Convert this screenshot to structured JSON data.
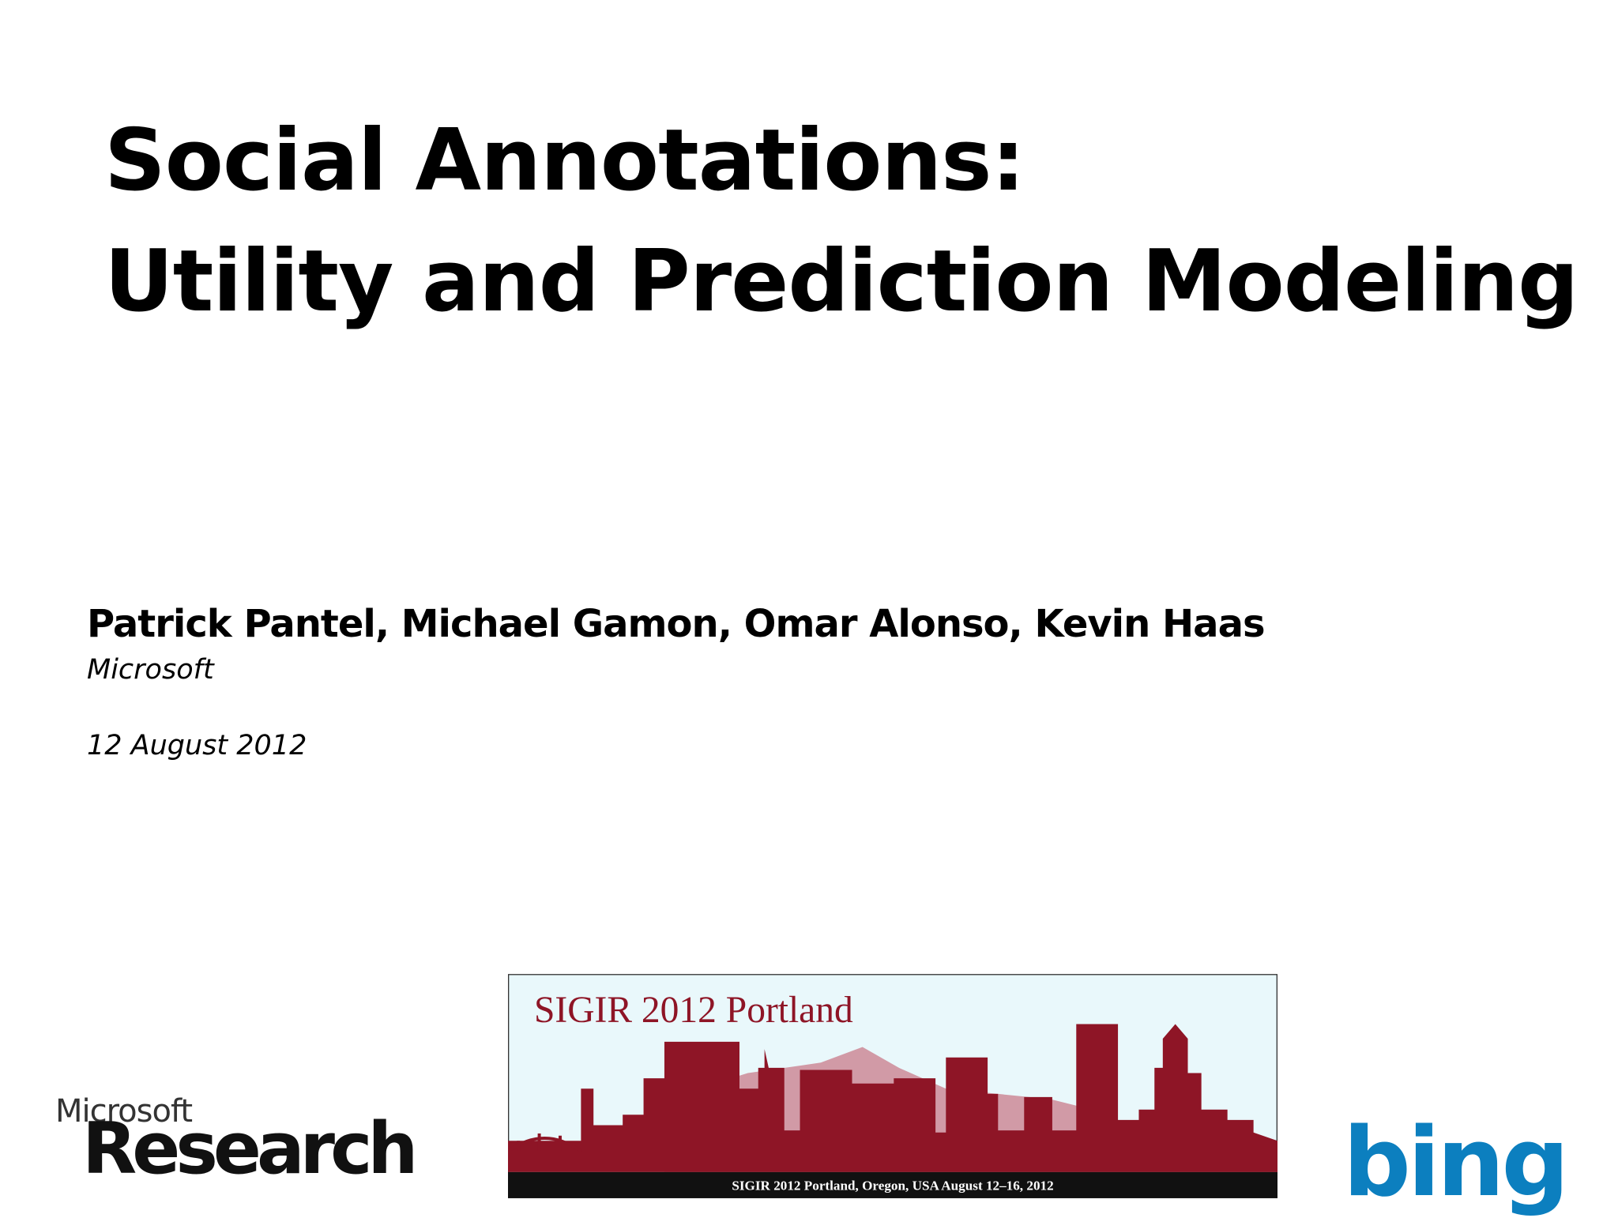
{
  "slide": {
    "title": [
      "Social Annotations:",
      "Utility and Prediction Modeling"
    ],
    "authors": "Patrick Pantel, Michael Gamon, Omar Alonso, Kevin Haas",
    "affiliation": "Microsoft",
    "date": "12 August 2012"
  },
  "banner": {
    "title": "SIGIR 2012 Portland",
    "caption": "SIGIR 2012 Portland, Oregon, USA August 12–16, 2012"
  },
  "logos": {
    "microsoft": "Microsoft",
    "research": "Research",
    "bing": "bing"
  }
}
